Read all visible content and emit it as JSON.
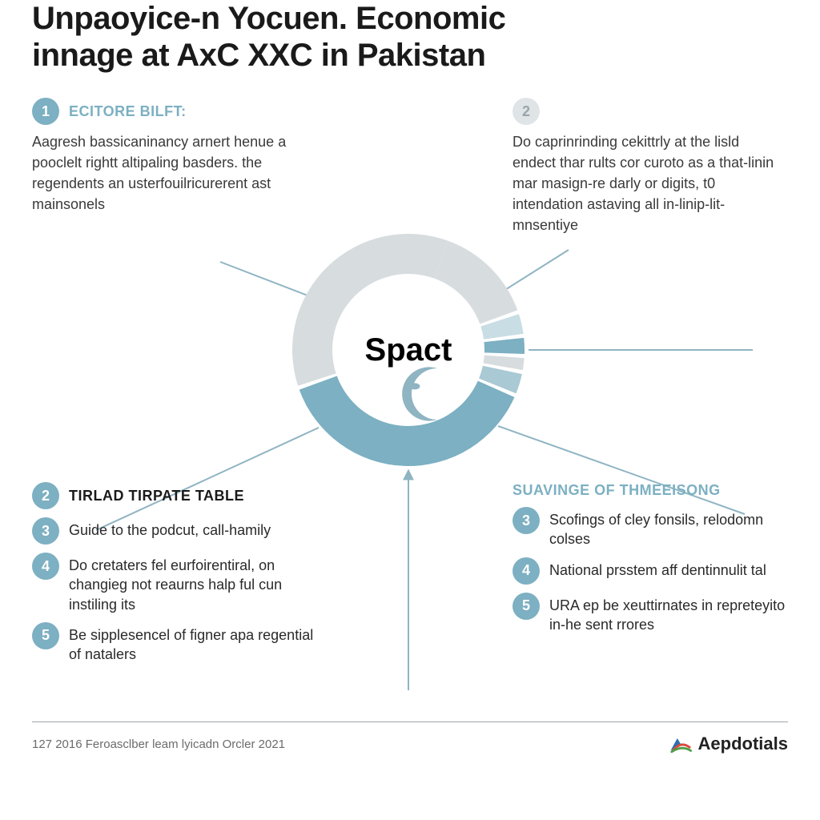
{
  "title_line1": "Unpaoyice-n Yocuen. Economic",
  "title_line2": "innage at AxC XXC in Pakistan",
  "colors": {
    "accent": "#7cb0c2",
    "accent_light": "#c8dde4",
    "gray_seg": "#d7dcdf",
    "gray_seg_dark": "#c3c9cc",
    "badge_solid_bg": "#7cb0c2",
    "badge_solid_fg": "#ffffff",
    "badge_hollow_bg": "#dfe4e7",
    "badge_hollow_fg": "#9aa5ab",
    "line": "#8fb4c2",
    "text": "#2a2a2a",
    "title": "#1a1a1a",
    "rule": "#9aa5ab",
    "background": "#ffffff",
    "logo_red": "#d84b3e",
    "logo_green": "#4c9e45",
    "logo_blue": "#2a6fb0"
  },
  "chart": {
    "type": "donut",
    "center_label": "Spact",
    "inner_radius": 95,
    "outer_radius": 145,
    "gap_deg": 2,
    "segments": [
      {
        "start": 20,
        "end": 70,
        "color": "#d7dcdf"
      },
      {
        "start": 72,
        "end": 82,
        "color": "#c8dde4"
      },
      {
        "start": 84,
        "end": 92,
        "color": "#7cb0c2"
      },
      {
        "start": 94,
        "end": 100,
        "color": "#d7dcdf"
      },
      {
        "start": 102,
        "end": 112,
        "color": "#a9c9d4"
      },
      {
        "start": 114,
        "end": 250,
        "color": "#7cb0c2"
      },
      {
        "start": 252,
        "end": 380,
        "color": "#d7dcdf"
      }
    ]
  },
  "sec_tl": {
    "num": "1",
    "title": "ECITORE BILFT:",
    "body": "Aagresh bassicaninancy arnert henue a pooclelt rightt altipaling basders. the regendents an usterfouilricurerent ast mainsonels"
  },
  "sec_tr": {
    "num": "2",
    "body": "Do caprinrinding cekittrly at the lisld endect thar rults cor curoto as a that-linin mar masign-re darly or digits, t0 intendation astaving all in-linip-lit-mnsentiye"
  },
  "sec_bl": {
    "num": "2",
    "title": "TIRLAD TIRPATE TABLE",
    "items": [
      {
        "n": "3",
        "t": "Guide to the podcut, call-hamily"
      },
      {
        "n": "4",
        "t": "Do cretaters fel eurfoirentiral, on changieg not reaurns halp ful cun instiling its"
      },
      {
        "n": "5",
        "t": "Be sipplesencel of figner apa regential of natalers"
      }
    ]
  },
  "sec_br": {
    "title": "SUAVINGE OF THMEEISONG",
    "items": [
      {
        "n": "3",
        "t": "Scofings of cley fonsils, relodomn colses"
      },
      {
        "n": "4",
        "t": "National prsstem aff dentinnulit tal"
      },
      {
        "n": "5",
        "t": "URA ep be xeuttirnates in repreteyito in-he sent rrores"
      }
    ]
  },
  "footer_left": "127  2016 Feroasclber leam lyicadn Orcler 2021",
  "footer_logo_text": "Aepdotials"
}
